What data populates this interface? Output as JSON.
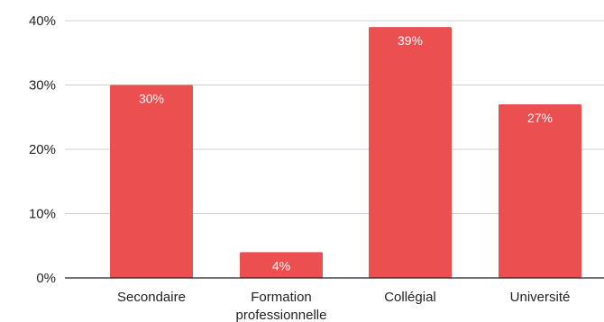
{
  "chart_data": {
    "type": "bar",
    "categories": [
      [
        "Secondaire"
      ],
      [
        "Formation",
        "professionnelle"
      ],
      [
        "Collégial"
      ],
      [
        "Université"
      ]
    ],
    "values": [
      30,
      4,
      39,
      27
    ],
    "value_labels": [
      "30%",
      "4%",
      "39%",
      "27%"
    ],
    "y_ticks": [
      0,
      10,
      20,
      30,
      40
    ],
    "y_tick_labels": [
      "0%",
      "10%",
      "20%",
      "30%",
      "40%"
    ],
    "ylim": [
      0,
      40
    ],
    "title": "",
    "xlabel": "",
    "ylabel": "",
    "grid": true,
    "bar_color": "#eb4f4f"
  }
}
